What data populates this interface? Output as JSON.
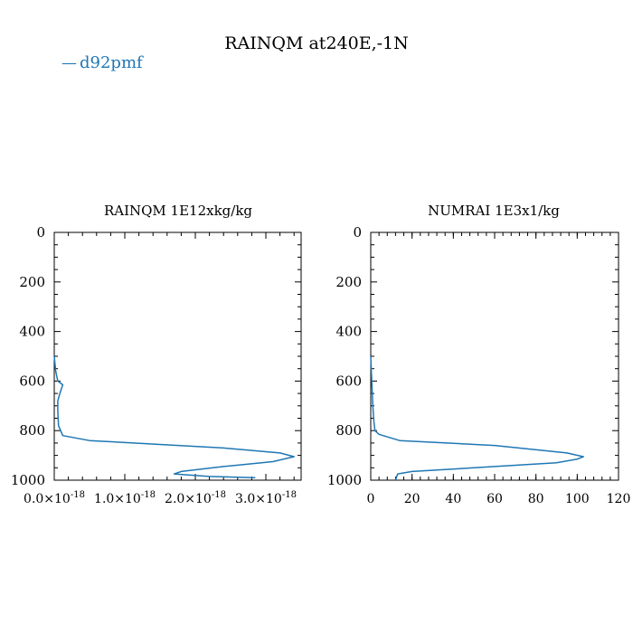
{
  "figure": {
    "title": "RAINQM at240E,-1N",
    "legend": {
      "label": "d92pmf",
      "marker": "—",
      "color": "#1f77b4"
    }
  },
  "chart_data": [
    {
      "type": "line",
      "title": "RAINQM  1E12xkg/kg",
      "xlim": [
        0,
        3.5e-18
      ],
      "ylim": [
        1000,
        0
      ],
      "y_inverted": true,
      "xticks": [
        0,
        1e-18,
        2e-18,
        3e-18
      ],
      "xtick_labels": [
        {
          "mant": "0.0×10",
          "exp": "-18"
        },
        {
          "mant": "1.0×10",
          "exp": "-18"
        },
        {
          "mant": "2.0×10",
          "exp": "-18"
        },
        {
          "mant": "3.0×10",
          "exp": "-18"
        }
      ],
      "yticks": [
        0,
        200,
        400,
        600,
        800,
        1000
      ],
      "ytick_labels": [
        "0",
        "200",
        "400",
        "600",
        "800",
        "1000"
      ],
      "series": [
        {
          "name": "d92pmf",
          "color": "#1f77b4",
          "x": [
            0,
            2e-20,
            5e-20,
            1.2e-19,
            8e-20,
            5e-20,
            5e-20,
            6e-20,
            1.2e-19,
            5e-19,
            2.4e-18,
            3.2e-18,
            3.4e-18,
            3.1e-18,
            2.4e-18,
            1.8e-18,
            1.7e-18,
            2.2e-18,
            2.85e-18
          ],
          "y": [
            500,
            560,
            600,
            615,
            650,
            680,
            720,
            780,
            820,
            840,
            870,
            890,
            905,
            925,
            945,
            965,
            975,
            985,
            990
          ]
        }
      ]
    },
    {
      "type": "line",
      "title": "NUMRAI  1E3x1/kg",
      "xlim": [
        0,
        120
      ],
      "ylim": [
        1000,
        0
      ],
      "y_inverted": true,
      "xticks": [
        0,
        20,
        40,
        60,
        80,
        100,
        120
      ],
      "xtick_labels": [
        "0",
        "20",
        "40",
        "60",
        "80",
        "100",
        "120"
      ],
      "yticks": [
        0,
        200,
        400,
        600,
        800,
        1000
      ],
      "ytick_labels": [
        "0",
        "200",
        "400",
        "600",
        "800",
        "1000"
      ],
      "series": [
        {
          "name": "d92pmf",
          "color": "#1f77b4",
          "x": [
            0,
            0.5,
            1,
            1.5,
            2,
            4,
            14,
            60,
            95,
            103,
            100,
            90,
            50,
            20,
            13,
            12
          ],
          "y": [
            500,
            600,
            700,
            760,
            800,
            815,
            840,
            860,
            890,
            905,
            915,
            930,
            950,
            965,
            975,
            1000
          ]
        }
      ]
    }
  ]
}
